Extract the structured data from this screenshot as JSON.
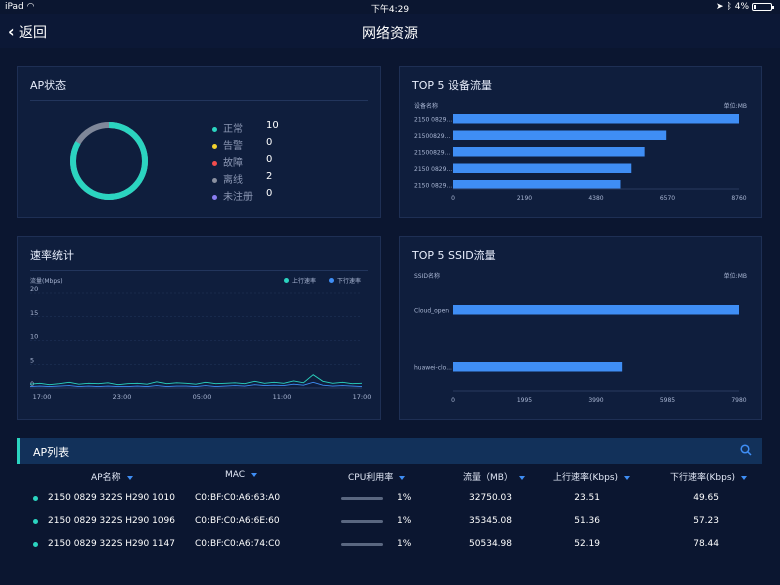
{
  "status_bar": {
    "device": "iPad",
    "time": "下午4:29",
    "battery": "4%"
  },
  "nav": {
    "back_label": "返回",
    "title": "网络资源"
  },
  "ap_status": {
    "title": "AP状态",
    "legend": [
      {
        "label": "正常",
        "value": "10",
        "color": "#2bd4c0"
      },
      {
        "label": "告警",
        "value": "0",
        "color": "#f2d12e"
      },
      {
        "label": "故障",
        "value": "0",
        "color": "#f24d4d"
      },
      {
        "label": "离线",
        "value": "2",
        "color": "#8a90a0"
      },
      {
        "label": "未注册",
        "value": "0",
        "color": "#8a7df0"
      }
    ]
  },
  "top5_device": {
    "title": "TOP 5 设备流量",
    "col_label": "设备名称",
    "unit": "单位:MB"
  },
  "rate_stats": {
    "title": "速率统计",
    "y_unit": "流量(Mbps)",
    "legend_up": "上行速率",
    "legend_down": "下行速率",
    "up_color": "#2bd4c0",
    "down_color": "#3f8ef5"
  },
  "top5_ssid": {
    "title": "TOP 5 SSID流量",
    "col_label": "SSID名称",
    "unit": "单位:MB"
  },
  "chart_data": [
    {
      "type": "bar",
      "title": "TOP 5 设备流量",
      "categories": [
        "2150 0829...",
        "21500829...",
        "21500829...",
        "2150 0829...",
        "2150 0829..."
      ],
      "values": [
        8760,
        6530,
        5870,
        5460,
        5130
      ],
      "xlim": [
        0,
        8760
      ],
      "xticks": [
        "0",
        "2190",
        "4380",
        "6570",
        "8760"
      ]
    },
    {
      "type": "line",
      "title": "速率统计",
      "ylabel": "流量(Mbps)",
      "ylim": [
        0,
        20
      ],
      "yticks": [
        "20",
        "15",
        "10",
        "5",
        "0"
      ],
      "xticks": [
        "17:00",
        "23:00",
        "05:00",
        "11:00",
        "17:00"
      ],
      "series": [
        {
          "name": "上行速率",
          "values": [
            0.8,
            1.0,
            0.7,
            0.9,
            1.2,
            0.8,
            1.0,
            0.9,
            1.1,
            0.7,
            0.9,
            1.0,
            0.8,
            1.3,
            0.9,
            1.1,
            1.0,
            0.8,
            1.2,
            0.9,
            1.0,
            1.1,
            0.9,
            1.4,
            1.0,
            1.2,
            1.0,
            1.5,
            1.1,
            2.8,
            1.4,
            1.0,
            1.2,
            0.9,
            1.0
          ]
        },
        {
          "name": "下行速率",
          "values": [
            0.3,
            0.4,
            0.3,
            0.4,
            0.5,
            0.3,
            0.4,
            0.3,
            0.4,
            0.3,
            0.3,
            0.4,
            0.3,
            0.5,
            0.3,
            0.4,
            0.4,
            0.3,
            0.5,
            0.3,
            0.4,
            0.5,
            0.4,
            0.7,
            0.5,
            0.6,
            0.5,
            0.8,
            0.6,
            1.2,
            0.6,
            0.4,
            0.5,
            0.4,
            0.3
          ]
        }
      ]
    },
    {
      "type": "bar",
      "title": "TOP 5 SSID流量",
      "categories": [
        "Cloud_open",
        "huawei-clo..."
      ],
      "values": [
        7980,
        4720
      ],
      "xlim": [
        0,
        7980
      ],
      "xticks": [
        "0",
        "1995",
        "3990",
        "5985",
        "7980"
      ]
    }
  ],
  "ap_list": {
    "title": "AP列表",
    "headers": {
      "name": "AP名称",
      "mac": "MAC",
      "cpu": "CPU利用率",
      "flow": "流量（MB）",
      "up": "上行速率(Kbps)",
      "down": "下行速率(Kbps)"
    },
    "rows": [
      {
        "name": "2150 0829 322S H290 1010",
        "mac": "C0:BF:C0:A6:63:A0",
        "cpu": "1%",
        "flow": "32750.03",
        "up": "23.51",
        "down": "49.65"
      },
      {
        "name": "2150 0829 322S H290 1096",
        "mac": "C0:BF:C0:A6:6E:60",
        "cpu": "1%",
        "flow": "35345.08",
        "up": "51.36",
        "down": "57.23"
      },
      {
        "name": "2150 0829 322S H290 1147",
        "mac": "C0:BF:C0:A6:74:C0",
        "cpu": "1%",
        "flow": "50534.98",
        "up": "52.19",
        "down": "78.44"
      }
    ]
  }
}
